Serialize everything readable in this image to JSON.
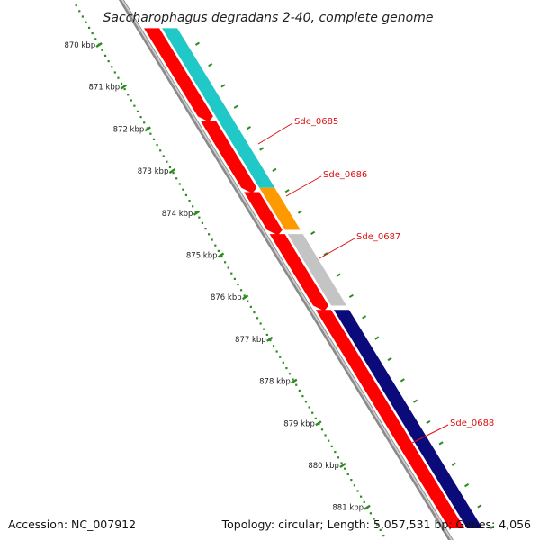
{
  "title": "Saccharophagus degradans 2-40, complete genome",
  "accession": "Accession: NC_007912",
  "summary": "Topology: circular; Length: 5,057,531 bp; Genes: 4,056",
  "colors": {
    "background": "#ffffff",
    "backbone": "#8a8a8a",
    "ticks": "#2e8b22",
    "cds": "#ff0000",
    "label": "#dd1111",
    "gene_Sde_0685": "#20c8c8",
    "gene_Sde_0686": "#ff9900",
    "gene_Sde_0687": "#c4c4c4",
    "gene_Sde_0688": "#0a0a7a"
  },
  "scale_ticks": [
    {
      "kbp": 870,
      "label": "870 kbp"
    },
    {
      "kbp": 871,
      "label": "871 kbp"
    },
    {
      "kbp": 872,
      "label": "872 kbp"
    },
    {
      "kbp": 873,
      "label": "873 kbp"
    },
    {
      "kbp": 874,
      "label": "874 kbp"
    },
    {
      "kbp": 875,
      "label": "875 kbp"
    },
    {
      "kbp": 876,
      "label": "876 kbp"
    },
    {
      "kbp": 877,
      "label": "877 kbp"
    },
    {
      "kbp": 878,
      "label": "878 kbp"
    },
    {
      "kbp": 879,
      "label": "879 kbp"
    },
    {
      "kbp": 880,
      "label": "880 kbp"
    },
    {
      "kbp": 881,
      "label": "881 kbp"
    }
  ],
  "genes": [
    {
      "name": "Sde_0685",
      "color": "#20c8c8",
      "start_kbp": 869.6,
      "end_kbp": 873.4
    },
    {
      "name": "Sde_0686",
      "color": "#ff9900",
      "start_kbp": 873.4,
      "end_kbp": 874.4
    },
    {
      "name": "Sde_0687",
      "color": "#c4c4c4",
      "start_kbp": 874.5,
      "end_kbp": 876.2
    },
    {
      "name": "Sde_0688",
      "color": "#0a0a7a",
      "start_kbp": 876.3,
      "end_kbp": 881.5
    }
  ],
  "cds_blocks": [
    {
      "start_kbp": 869.6,
      "end_kbp": 871.7
    },
    {
      "start_kbp": 871.8,
      "end_kbp": 873.4
    },
    {
      "start_kbp": 873.5,
      "end_kbp": 874.4
    },
    {
      "start_kbp": 874.5,
      "end_kbp": 876.2
    },
    {
      "start_kbp": 876.3,
      "end_kbp": 881.5
    }
  ]
}
